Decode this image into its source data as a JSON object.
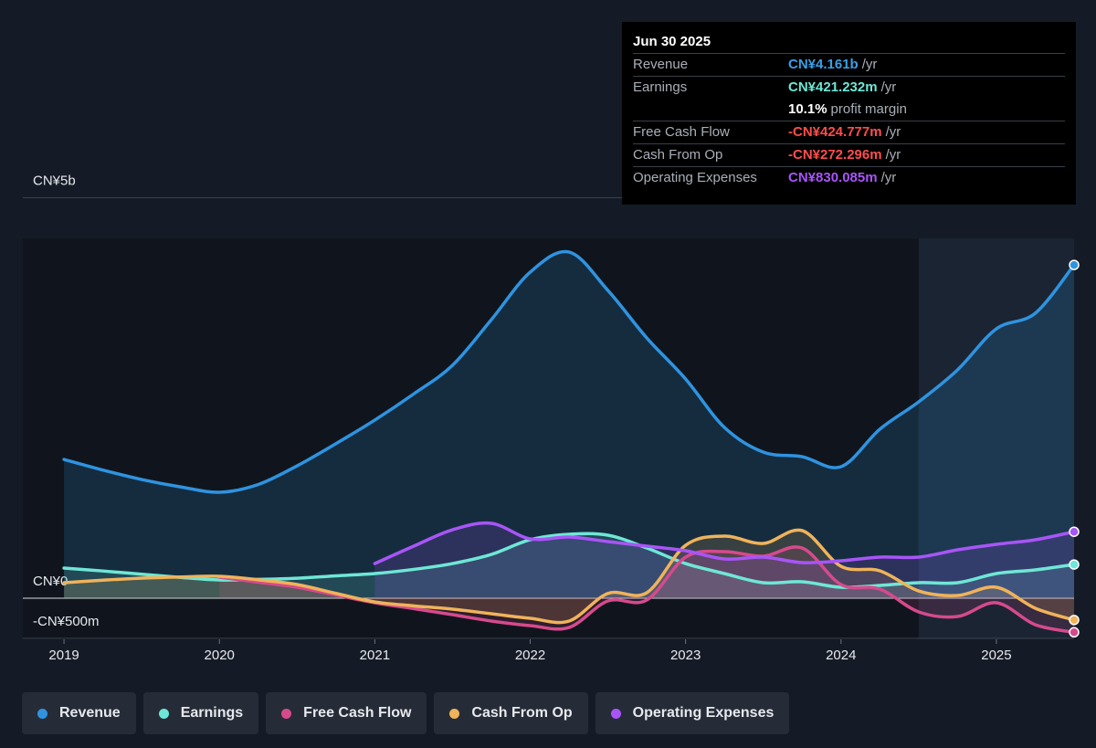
{
  "chart_data": {
    "type": "line",
    "x": [
      2019,
      2019.25,
      2019.5,
      2019.75,
      2020,
      2020.25,
      2020.5,
      2020.75,
      2021,
      2021.25,
      2021.5,
      2021.75,
      2022,
      2022.25,
      2022.5,
      2022.75,
      2023,
      2023.25,
      2023.5,
      2023.75,
      2024,
      2024.25,
      2024.5,
      2024.75,
      2025,
      2025.25,
      2025.5
    ],
    "series": [
      {
        "name": "Revenue",
        "color": "#2f93e0",
        "values": [
          1733,
          1600,
          1482,
          1390,
          1323,
          1420,
          1653,
          1930,
          2224,
          2550,
          2908,
          3478,
          4071,
          4322,
          3843,
          3250,
          2737,
          2132,
          1824,
          1767,
          1642,
          2110,
          2452,
          2851,
          3364,
          3558,
          4161
        ]
      },
      {
        "name": "Earnings",
        "color": "#6ee7d6",
        "values": [
          376,
          340,
          300,
          260,
          228,
          235,
          250,
          280,
          308,
          360,
          433,
          547,
          730,
          798,
          787,
          627,
          433,
          308,
          194,
          205,
          137,
          160,
          194,
          194,
          308,
          353,
          421
        ]
      },
      {
        "name": "Free Cash Flow",
        "color": "#d64a8c",
        "values": [
          null,
          null,
          null,
          null,
          262,
          200,
          137,
          40,
          -57,
          -130,
          -205,
          -285,
          -342,
          -365,
          -34,
          -23,
          513,
          582,
          525,
          627,
          171,
          114,
          -171,
          -228,
          -57,
          -331,
          -425
        ]
      },
      {
        "name": "Cash From Op",
        "color": "#f0b35a",
        "values": [
          194,
          225,
          251,
          265,
          274,
          230,
          171,
          60,
          -46,
          -95,
          -137,
          -194,
          -251,
          -285,
          60,
          68,
          661,
          775,
          684,
          844,
          399,
          342,
          91,
          34,
          137,
          -125,
          -272
        ]
      },
      {
        "name": "Operating Expenses",
        "color": "#a855f7",
        "values": [
          null,
          null,
          null,
          null,
          null,
          null,
          null,
          null,
          433,
          650,
          855,
          935,
          741,
          764,
          707,
          650,
          593,
          490,
          513,
          445,
          467,
          513,
          513,
          604,
          673,
          730,
          830
        ]
      }
    ],
    "xlim": [
      2018.735,
      2025.5
    ],
    "xticks": [
      2019,
      2020,
      2021,
      2022,
      2023,
      2024,
      2025
    ],
    "ylim": [
      -513,
      5000
    ],
    "yticks": [
      {
        "value": -500,
        "label": "-CN¥500m"
      },
      {
        "value": 0,
        "label": "CN¥0"
      },
      {
        "value": 5000,
        "label": "CN¥5b"
      }
    ],
    "grid": true,
    "tooltip": {
      "date": "Jun 30 2025",
      "rows": [
        {
          "label": "Revenue",
          "value": "CN¥4.161b",
          "unit": "/yr",
          "color": "#3b9fe6"
        },
        {
          "label": "Earnings",
          "value": "CN¥421.232m",
          "unit": "/yr",
          "color": "#6ee7d6"
        },
        {
          "label": "",
          "value": "10.1%",
          "unit": "profit margin",
          "color": "#ffffff"
        },
        {
          "label": "Free Cash Flow",
          "value": "-CN¥424.777m",
          "unit": "/yr",
          "color": "#ff4d4d"
        },
        {
          "label": "Cash From Op",
          "value": "-CN¥272.296m",
          "unit": "/yr",
          "color": "#ff4d4d"
        },
        {
          "label": "Operating Expenses",
          "value": "CN¥830.085m",
          "unit": "/yr",
          "color": "#a855f7"
        }
      ]
    }
  }
}
